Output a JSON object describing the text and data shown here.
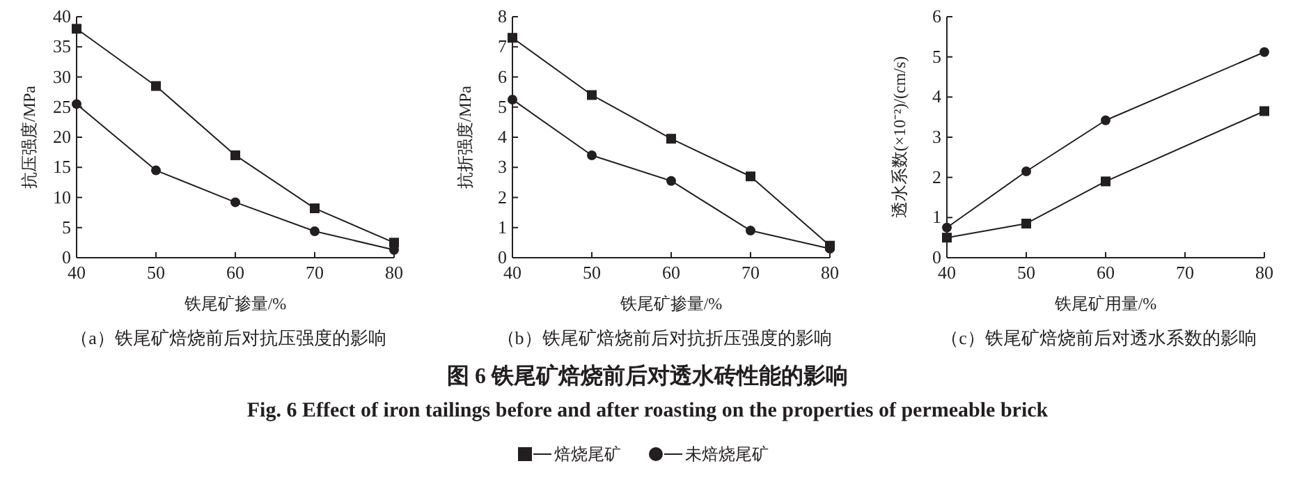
{
  "chart_data": [
    {
      "type": "line",
      "title": "（a）铁尾矿焙烧前后对抗压强度的影响",
      "xlabel": "铁尾矿掺量/%",
      "ylabel": "抗压强度/MPa",
      "x": [
        40,
        50,
        60,
        70,
        80
      ],
      "xlim": [
        40,
        80
      ],
      "xticks": [
        40,
        50,
        60,
        70,
        80
      ],
      "ylim": [
        0,
        40
      ],
      "yticks": [
        0,
        5,
        10,
        15,
        20,
        25,
        30,
        35,
        40
      ],
      "line_style": "solid",
      "legend": "bottom",
      "series": [
        {
          "name": "焙烧尾矿",
          "color": "#231f20",
          "marker": "square",
          "values": [
            38,
            28.5,
            17,
            8.2,
            2.5
          ]
        },
        {
          "name": "未焙烧尾矿",
          "color": "#231f20",
          "marker": "circle",
          "values": [
            25.5,
            14.5,
            9.2,
            4.4,
            1.3
          ]
        }
      ],
      "annotations": [
        "图 6   铁尾矿焙烧前后对透水砖性能的影响",
        "Fig. 6   Effect of iron tailings before and after roasting on the properties of permeable brick"
      ]
    },
    {
      "type": "line",
      "title": "（b）铁尾矿焙烧前后对抗折压强度的影响",
      "xlabel": "铁尾矿掺量/%",
      "ylabel": "抗折强度/MPa",
      "x": [
        40,
        50,
        60,
        70,
        80
      ],
      "xlim": [
        40,
        80
      ],
      "xticks": [
        40,
        50,
        60,
        70,
        80
      ],
      "ylim": [
        0,
        8
      ],
      "yticks": [
        0,
        1,
        2,
        3,
        4,
        5,
        6,
        7,
        8
      ],
      "line_style": "solid",
      "series": [
        {
          "color": "#231f20",
          "marker": "square",
          "values": [
            7.3,
            5.4,
            3.95,
            2.7,
            0.4
          ]
        },
        {
          "color": "#231f20",
          "marker": "circle",
          "values": [
            5.25,
            3.4,
            2.55,
            0.9,
            0.3
          ]
        }
      ]
    },
    {
      "type": "line",
      "title": "（c）铁尾矿焙烧前后对透水系数的影响",
      "xlabel": "铁尾矿用量/%",
      "ylabel": "透水系数(×10⁻²)/(cm/s)",
      "x": [
        40,
        50,
        60,
        80
      ],
      "xlim": [
        40,
        80
      ],
      "xticks": [
        40,
        50,
        60,
        70,
        80
      ],
      "ylim": [
        0,
        6
      ],
      "yticks": [
        0,
        1,
        2,
        3,
        4,
        5,
        6
      ],
      "line_style": "solid",
      "series": [
        {
          "color": "#231f20",
          "marker": "square",
          "values": [
            0.5,
            0.85,
            1.9,
            3.65
          ]
        },
        {
          "color": "#231f20",
          "marker": "circle",
          "values": [
            0.75,
            2.15,
            3.42,
            5.12
          ]
        }
      ]
    }
  ]
}
